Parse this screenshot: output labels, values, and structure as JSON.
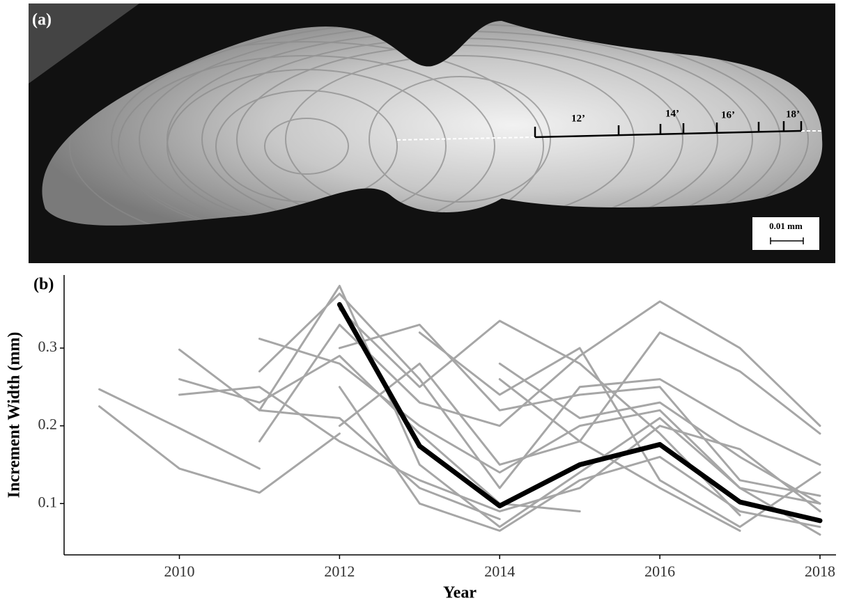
{
  "panel_a": {
    "label": "(a)",
    "ring_labels": [
      "12’",
      "14’",
      "16’",
      "18’"
    ],
    "scale_bar": "0.01 mm"
  },
  "chart_data": {
    "type": "line",
    "panel_label": "(b)",
    "xlabel": "Year",
    "ylabel": "Increment Width (mm)",
    "x": [
      2009,
      2010,
      2011,
      2012,
      2013,
      2014,
      2015,
      2016,
      2017,
      2018
    ],
    "series": [
      {
        "color": "#a6a6a6",
        "values": [
          0.247,
          0.197,
          0.145,
          null,
          null,
          null,
          null,
          null,
          null,
          null
        ]
      },
      {
        "color": "#a6a6a6",
        "values": [
          0.225,
          0.145,
          0.114,
          0.19,
          null,
          null,
          null,
          null,
          null,
          null
        ]
      },
      {
        "color": "#a6a6a6",
        "values": [
          null,
          0.298,
          0.22,
          0.21,
          0.12,
          0.08,
          null,
          null,
          null,
          null
        ]
      },
      {
        "color": "#a6a6a6",
        "values": [
          null,
          0.26,
          0.23,
          0.29,
          0.19,
          0.1,
          0.09,
          null,
          null,
          null
        ]
      },
      {
        "color": "#a6a6a6",
        "values": [
          null,
          0.24,
          0.25,
          0.18,
          0.13,
          0.09,
          0.12,
          0.2,
          0.17,
          0.09
        ]
      },
      {
        "color": "#a6a6a6",
        "values": [
          null,
          null,
          0.312,
          0.28,
          0.2,
          0.14,
          0.2,
          0.22,
          0.12,
          0.1
        ]
      },
      {
        "color": "#a6a6a6",
        "values": [
          null,
          null,
          0.27,
          0.37,
          0.26,
          0.12,
          0.25,
          0.26,
          0.2,
          0.15
        ]
      },
      {
        "color": "#a6a6a6",
        "values": [
          null,
          null,
          0.18,
          0.33,
          0.23,
          0.2,
          0.29,
          0.36,
          0.3,
          0.2
        ]
      },
      {
        "color": "#a6a6a6",
        "values": [
          null,
          null,
          0.22,
          0.38,
          0.15,
          0.07,
          0.14,
          0.21,
          0.12,
          0.06
        ]
      },
      {
        "color": "#a6a6a6",
        "values": [
          null,
          null,
          null,
          0.3,
          0.33,
          0.22,
          0.24,
          0.25,
          0.13,
          0.11
        ]
      },
      {
        "color": "#a6a6a6",
        "values": [
          null,
          null,
          null,
          0.25,
          0.1,
          0.065,
          0.13,
          0.16,
          0.09,
          0.07
        ]
      },
      {
        "color": "#a6a6a6",
        "values": [
          null,
          null,
          null,
          0.35,
          0.25,
          0.335,
          0.28,
          0.19,
          0.085,
          null
        ]
      },
      {
        "color": "#a6a6a6",
        "values": [
          null,
          null,
          null,
          0.2,
          0.28,
          0.15,
          0.18,
          0.32,
          0.27,
          0.19
        ]
      },
      {
        "color": "#a6a6a6",
        "values": [
          null,
          null,
          null,
          null,
          0.32,
          0.24,
          0.3,
          0.13,
          0.07,
          0.14
        ]
      },
      {
        "color": "#a6a6a6",
        "values": [
          null,
          null,
          null,
          null,
          null,
          0.28,
          0.21,
          0.23,
          0.16,
          0.1
        ]
      },
      {
        "color": "#a6a6a6",
        "values": [
          null,
          null,
          null,
          null,
          null,
          0.26,
          0.18,
          0.12,
          0.065,
          null
        ]
      },
      {
        "color": "#000000",
        "values": [
          null,
          null,
          null,
          0.356,
          0.174,
          0.097,
          0.15,
          0.176,
          0.102,
          0.078
        ]
      }
    ],
    "xlim": [
      2008.56,
      2018.2
    ],
    "ylim": [
      0.034,
      0.394
    ],
    "xticks": [
      2010,
      2012,
      2014,
      2016,
      2018
    ],
    "yticks": [
      0.1,
      0.2,
      0.3
    ]
  }
}
